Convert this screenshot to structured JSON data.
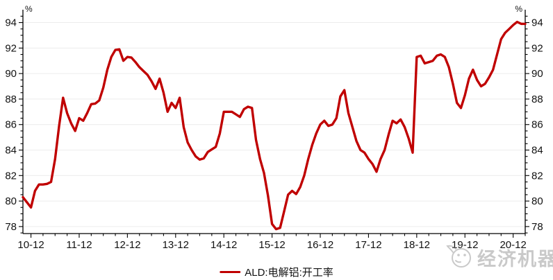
{
  "page": {
    "background": "#ffffff"
  },
  "chart_data": {
    "type": "line",
    "title": "",
    "xlabel": "",
    "ylabel": "%",
    "y_axis_unit_left": "%",
    "y_axis_unit_right": "%",
    "grid": "horizontal",
    "legend_position": "bottom-center",
    "axis_color": "#000000",
    "grid_color": "#ececec",
    "text_color": "#111111",
    "ylim": [
      77.45,
      94.9
    ],
    "y_ticks": [
      78,
      80,
      82,
      84,
      86,
      88,
      90,
      92,
      94
    ],
    "y_minor_step": 0.5,
    "x_ticklabels": [
      "10-12",
      "11-12",
      "12-12",
      "13-12",
      "14-12",
      "15-12",
      "16-12",
      "17-12",
      "18-12",
      "19-12",
      "20-12"
    ],
    "x_tick_month_indices": [
      2,
      14,
      26,
      38,
      50,
      62,
      74,
      86,
      98,
      110,
      122
    ],
    "x_minor_month_step": 3,
    "series": [
      {
        "name": "ALD:电解铝:开工率",
        "color": "#c00000",
        "start": "2010-10",
        "freq": "monthly",
        "values": [
          80.3,
          79.9,
          79.5,
          80.8,
          81.3,
          81.3,
          81.35,
          81.5,
          83.3,
          85.9,
          88.1,
          86.9,
          86.1,
          85.5,
          86.5,
          86.3,
          86.9,
          87.6,
          87.65,
          87.9,
          88.9,
          90.3,
          91.3,
          91.85,
          91.9,
          91.0,
          91.3,
          91.25,
          90.9,
          90.5,
          90.2,
          89.9,
          89.4,
          88.8,
          89.6,
          88.5,
          87.0,
          87.7,
          87.3,
          88.1,
          85.8,
          84.6,
          84.0,
          83.5,
          83.25,
          83.35,
          83.85,
          84.05,
          84.25,
          85.3,
          87.0,
          87.0,
          87.0,
          86.8,
          86.6,
          87.2,
          87.4,
          87.3,
          84.8,
          83.3,
          82.2,
          80.4,
          78.2,
          77.8,
          77.9,
          79.2,
          80.5,
          80.8,
          80.55,
          81.1,
          82.0,
          83.3,
          84.4,
          85.3,
          86.0,
          86.3,
          85.9,
          86.0,
          86.5,
          88.2,
          88.7,
          86.9,
          85.8,
          84.7,
          84.0,
          83.8,
          83.3,
          82.9,
          82.3,
          83.3,
          84.0,
          85.2,
          86.3,
          86.1,
          86.4,
          85.8,
          84.9,
          83.8,
          91.3,
          91.4,
          90.8,
          90.9,
          91.0,
          91.4,
          91.5,
          91.3,
          90.5,
          89.2,
          87.7,
          87.3,
          88.3,
          89.6,
          90.3,
          89.5,
          89.0,
          89.2,
          89.7,
          90.3,
          91.5,
          92.7,
          93.2,
          93.5,
          93.8,
          94.05,
          93.9,
          93.9
        ]
      }
    ],
    "legend": {
      "label": "ALD:电解铝:开工率"
    },
    "watermark": "经济机器"
  }
}
